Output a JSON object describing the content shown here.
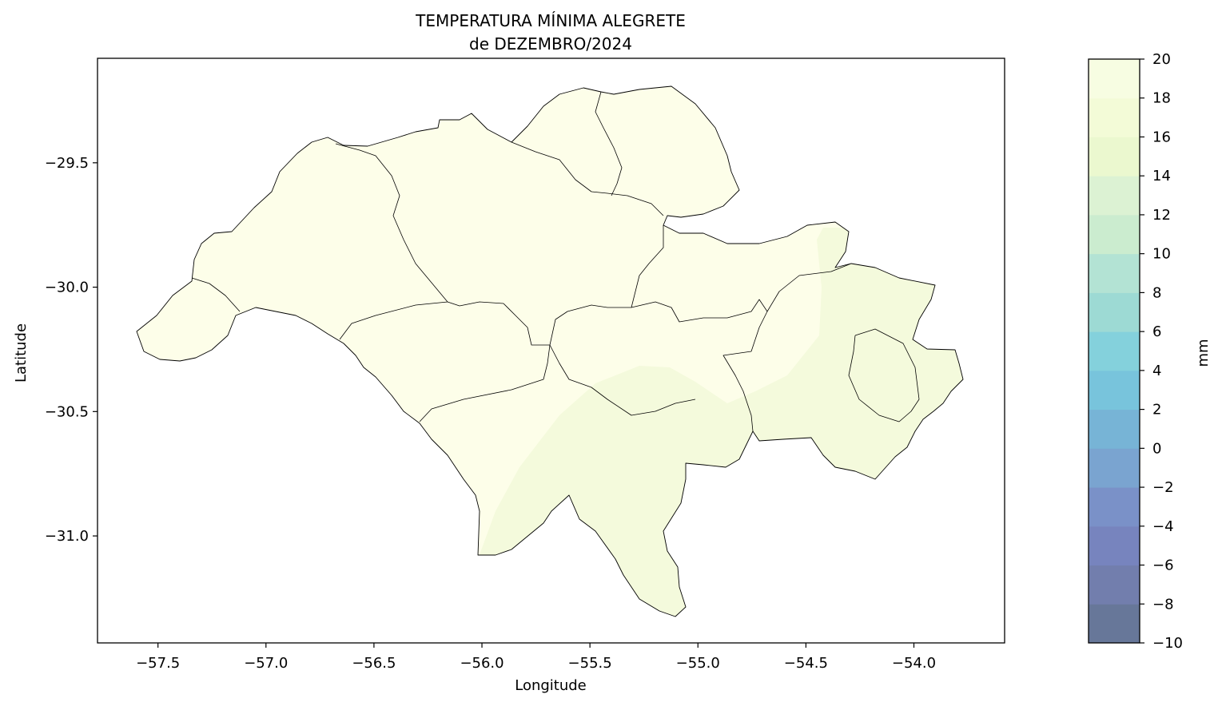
{
  "title_line1": "TEMPERATURA MÍNIMA ALEGRETE",
  "title_line2": "de DEZEMBRO/2024",
  "xlabel": "Longitude",
  "ylabel": "Latitude",
  "colorbar": {
    "label": "mm",
    "levels": [
      -10,
      -8,
      -6,
      -4,
      -2,
      0,
      2,
      4,
      6,
      8,
      10,
      12,
      14,
      16,
      18,
      20
    ],
    "colors": [
      "#677799",
      "#727ead",
      "#7784be",
      "#7a91c8",
      "#7aa4d0",
      "#77b4d6",
      "#78c4dc",
      "#84d1dc",
      "#9ddad4",
      "#b3e3d4",
      "#cbeccf",
      "#dcf2d3",
      "#ebf8cf",
      "#f3fbd7",
      "#f7fde2",
      "#fdfee9"
    ]
  },
  "chart_data": {
    "type": "heatmap",
    "title": "TEMPERATURA MÍNIMA ALEGRETE\nde DEZEMBRO/2024",
    "xlabel": "Longitude",
    "ylabel": "Latitude",
    "xlim": [
      -57.78,
      -53.58
    ],
    "ylim": [
      -31.43,
      -29.08
    ],
    "xticks": [
      -57.5,
      -57.0,
      -56.5,
      -56.0,
      -55.5,
      -55.0,
      -54.5,
      -54.0
    ],
    "yticks": [
      -29.5,
      -30.0,
      -30.5,
      -31.0
    ],
    "xtick_labels": [
      "−57.5",
      "−57.0",
      "−56.5",
      "−56.0",
      "−55.5",
      "−55.0",
      "−54.5",
      "−54.0"
    ],
    "ytick_labels": [
      "−29.5",
      "−30.0",
      "−30.5",
      "−31.0"
    ],
    "colorbar_tick_labels": [
      "−10",
      "−8",
      "−6",
      "−4",
      "−2",
      "0",
      "2",
      "4",
      "6",
      "8",
      "10",
      "12",
      "14",
      "16",
      "18",
      "20"
    ],
    "value_zones": [
      {
        "range": [
          18,
          20
        ],
        "area": "north and west of region"
      },
      {
        "range": [
          16,
          18
        ],
        "area": "south-central and east of region"
      }
    ]
  }
}
